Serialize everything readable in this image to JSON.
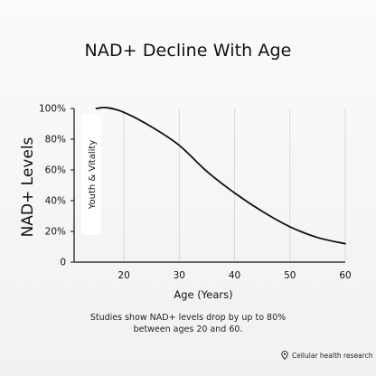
{
  "chart_data": {
    "type": "line",
    "title": "NAD+ Decline With Age",
    "xlabel": "Age (Years)",
    "ylabel": "NAD+ Levels",
    "x_ticks": [
      "20",
      "30",
      "40",
      "50",
      "60"
    ],
    "y_ticks": [
      "0",
      "20%",
      "40%",
      "60%",
      "80%",
      "100%"
    ],
    "xlim": [
      11,
      60
    ],
    "ylim": [
      0,
      100
    ],
    "grid": "vertical",
    "annotation": "Youth & Vitality",
    "series": [
      {
        "x": [
          15,
          17,
          20,
          25,
          30,
          35,
          40,
          45,
          50,
          55,
          60
        ],
        "values": [
          100,
          100.5,
          97.5,
          88,
          76,
          59,
          45,
          33,
          23,
          16,
          12
        ]
      }
    ],
    "line_color": "#111111"
  },
  "caption_line1": "Studies show NAD+ levels drop by up to 80%",
  "caption_line2": "between ages 20 and 60.",
  "source": {
    "label": "Cellular health research",
    "icon": "location-pin-icon"
  }
}
